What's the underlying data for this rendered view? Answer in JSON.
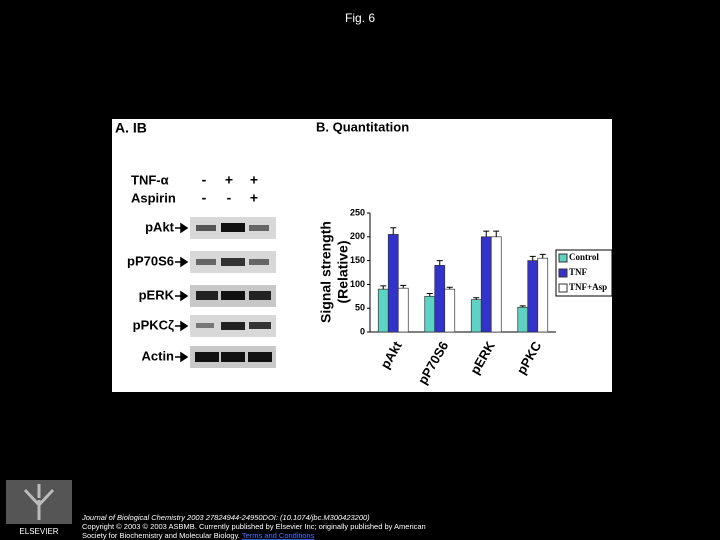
{
  "title": "Fig. 6",
  "panel_a": {
    "label": "A. IB",
    "conditions": [
      {
        "name": "TNF-α",
        "signs": [
          "-",
          "+",
          "+"
        ]
      },
      {
        "name": "Aspirin",
        "signs": [
          "-",
          "-",
          "+"
        ]
      }
    ],
    "blots": [
      "pAkt",
      "pP70S6",
      "pERK",
      "pPKCζ",
      "Actin"
    ]
  },
  "chart_data": {
    "type": "bar",
    "title": "B. Quantitation",
    "y_label": [
      "Signal strength",
      "(Relative)"
    ],
    "categories": [
      "pAkt",
      "pP70S6",
      "pERK",
      "pPKC"
    ],
    "series": [
      {
        "name": "Control",
        "color": "#5ed3c4",
        "values": [
          90,
          75,
          68,
          52
        ],
        "errors": [
          7,
          6,
          4,
          3
        ]
      },
      {
        "name": "TNF",
        "color": "#3333cc",
        "values": [
          205,
          140,
          200,
          150
        ],
        "errors": [
          14,
          10,
          12,
          9
        ]
      },
      {
        "name": "TNF+Asp",
        "color": "#ffffff",
        "values": [
          92,
          90,
          200,
          155
        ],
        "errors": [
          6,
          4,
          12,
          8
        ]
      }
    ],
    "ylim": [
      0,
      250
    ],
    "yticks": [
      0,
      50,
      100,
      150,
      200,
      250
    ]
  },
  "footer": {
    "publisher": "ELSEVIER",
    "citation": [
      "Journal of Biological Chemistry 2003 27824944-24950DOI: (10.1074/jbc.M300423200)",
      "Copyright © 2003 © 2003 ASBMB. Currently published by Elsevier Inc; originally published by American",
      "Society for Biochemistry and Molecular Biology."
    ],
    "link": "Terms and Conditions"
  }
}
